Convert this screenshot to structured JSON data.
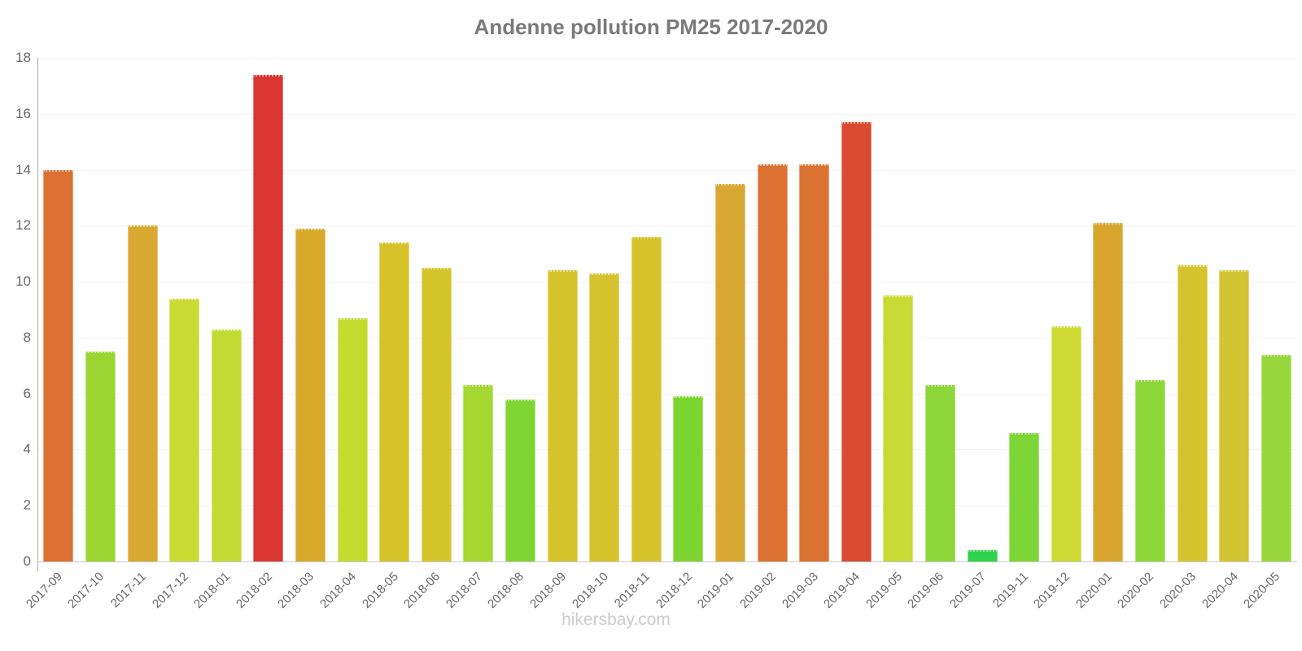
{
  "watermark": "hikersbay.com",
  "style": {
    "title_color": "#7a7a7a",
    "tick_color": "#666666",
    "gridline_color": "#f4f4f4",
    "y_axis_color": "#aaaaaa",
    "x_axis_color": "#cccccc",
    "watermark_color": "#cbcbcb"
  },
  "chart_data": {
    "type": "bar",
    "title": "Andenne pollution PM25 2017-2020",
    "xlabel": "",
    "ylabel": "",
    "ylim": [
      0,
      18
    ],
    "ytick_step": 2,
    "grid": true,
    "legend": false,
    "categories": [
      "2017-09",
      "2017-10",
      "2017-11",
      "2017-12",
      "2018-01",
      "2018-02",
      "2018-03",
      "2018-04",
      "2018-05",
      "2018-06",
      "2018-07",
      "2018-08",
      "2018-09",
      "2018-10",
      "2018-11",
      "2018-12",
      "2019-01",
      "2019-02",
      "2019-03",
      "2019-04",
      "2019-05",
      "2019-06",
      "2019-07",
      "2019-11",
      "2019-12",
      "2020-01",
      "2020-02",
      "2020-03",
      "2020-04",
      "2020-05"
    ],
    "values": [
      14.0,
      7.5,
      12.0,
      9.4,
      8.3,
      17.4,
      11.9,
      8.7,
      11.4,
      10.5,
      6.3,
      5.8,
      10.4,
      10.3,
      11.6,
      5.9,
      13.5,
      14.2,
      14.2,
      15.7,
      9.5,
      6.3,
      0.4,
      4.6,
      8.4,
      12.1,
      6.5,
      10.6,
      10.4,
      7.4
    ],
    "colors": [
      "#DB7233",
      "#9CD531",
      "#D9A832",
      "#C9DA33",
      "#C2DA34",
      "#DA3533",
      "#D9A92C",
      "#C4DB32",
      "#D6C32B",
      "#D5C52D",
      "#A5D831",
      "#7FD633",
      "#D5C32C",
      "#D5C42D",
      "#D6C22B",
      "#7DD431",
      "#D9A833",
      "#DB7232",
      "#DB7232",
      "#D94B30",
      "#C7DA36",
      "#8CD63A",
      "#2FD24A",
      "#7DD636",
      "#CDDA36",
      "#D8A62F",
      "#8CD63A",
      "#D6C42E",
      "#D2C433",
      "#98D73B"
    ]
  }
}
